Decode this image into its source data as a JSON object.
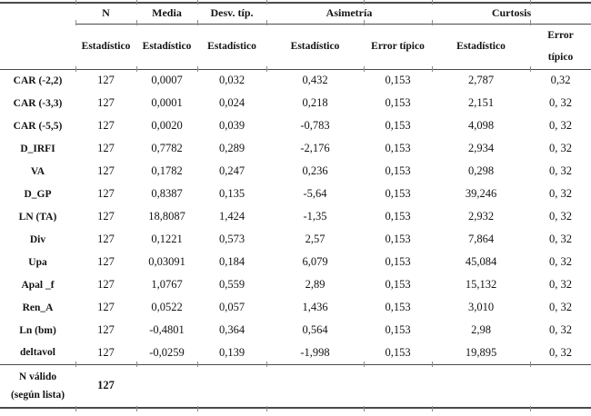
{
  "table": {
    "col_groups": [
      {
        "label": "N",
        "span": 1
      },
      {
        "label": "Media",
        "span": 1
      },
      {
        "label": "Desv. típ.",
        "span": 1
      },
      {
        "label": "Asimetría",
        "span": 2
      },
      {
        "label": "Curtosis",
        "span": 2
      }
    ],
    "sub_headers": [
      "Estadístico",
      "Estadístico",
      "Estadístico",
      "Estadístico",
      "Error típico",
      "Estadístico",
      "Error típico"
    ],
    "rows": [
      {
        "label": "CAR (-2,2)",
        "values": [
          "127",
          "0,0007",
          "0,032",
          "0,432",
          "0,153",
          "2,787",
          "0,32"
        ]
      },
      {
        "label": "CAR (-3,3)",
        "values": [
          "127",
          "0,0001",
          "0,024",
          "0,218",
          "0,153",
          "2,151",
          "0, 32"
        ]
      },
      {
        "label": "CAR (-5,5)",
        "values": [
          "127",
          "0,0020",
          "0,039",
          "-0,783",
          "0,153",
          "4,098",
          "0, 32"
        ]
      },
      {
        "label": "D_IRFI",
        "values": [
          "127",
          "0,7782",
          "0,289",
          "-2,176",
          "0,153",
          "2,934",
          "0, 32"
        ]
      },
      {
        "label": "VA",
        "values": [
          "127",
          "0,1782",
          "0,247",
          "0,236",
          "0,153",
          "0,298",
          "0, 32"
        ]
      },
      {
        "label": "D_GP",
        "values": [
          "127",
          "0,8387",
          "0,135",
          "-5,64",
          "0,153",
          "39,246",
          "0, 32"
        ]
      },
      {
        "label": "LN (TA)",
        "values": [
          "127",
          "18,8087",
          "1,424",
          "-1,35",
          "0,153",
          "2,932",
          "0, 32"
        ]
      },
      {
        "label": "Div",
        "values": [
          "127",
          "0,1221",
          "0,573",
          "2,57",
          "0,153",
          "7,864",
          "0, 32"
        ]
      },
      {
        "label": "Upa",
        "values": [
          "127",
          "0,03091",
          "0,184",
          "6,079",
          "0,153",
          "45,084",
          "0, 32"
        ]
      },
      {
        "label": "Apal _f",
        "values": [
          "127",
          "1,0767",
          "0,559",
          "2,89",
          "0,153",
          "15,132",
          "0, 32"
        ]
      },
      {
        "label": "Ren_A",
        "values": [
          "127",
          "0,0522",
          "0,057",
          "1,436",
          "0,153",
          "3,010",
          "0, 32"
        ]
      },
      {
        "label": "Ln (bm)",
        "values": [
          "127",
          "-0,4801",
          "0,364",
          "0,564",
          "0,153",
          "2,98",
          "0, 32"
        ]
      },
      {
        "label": "deltavol",
        "values": [
          "127",
          "-0,0259",
          "0,139",
          "-1,998",
          "0,153",
          "19,895",
          "0, 32"
        ]
      }
    ],
    "footer": {
      "label_line1": "N válido",
      "label_line2": "(según lista)",
      "n": "127"
    }
  }
}
